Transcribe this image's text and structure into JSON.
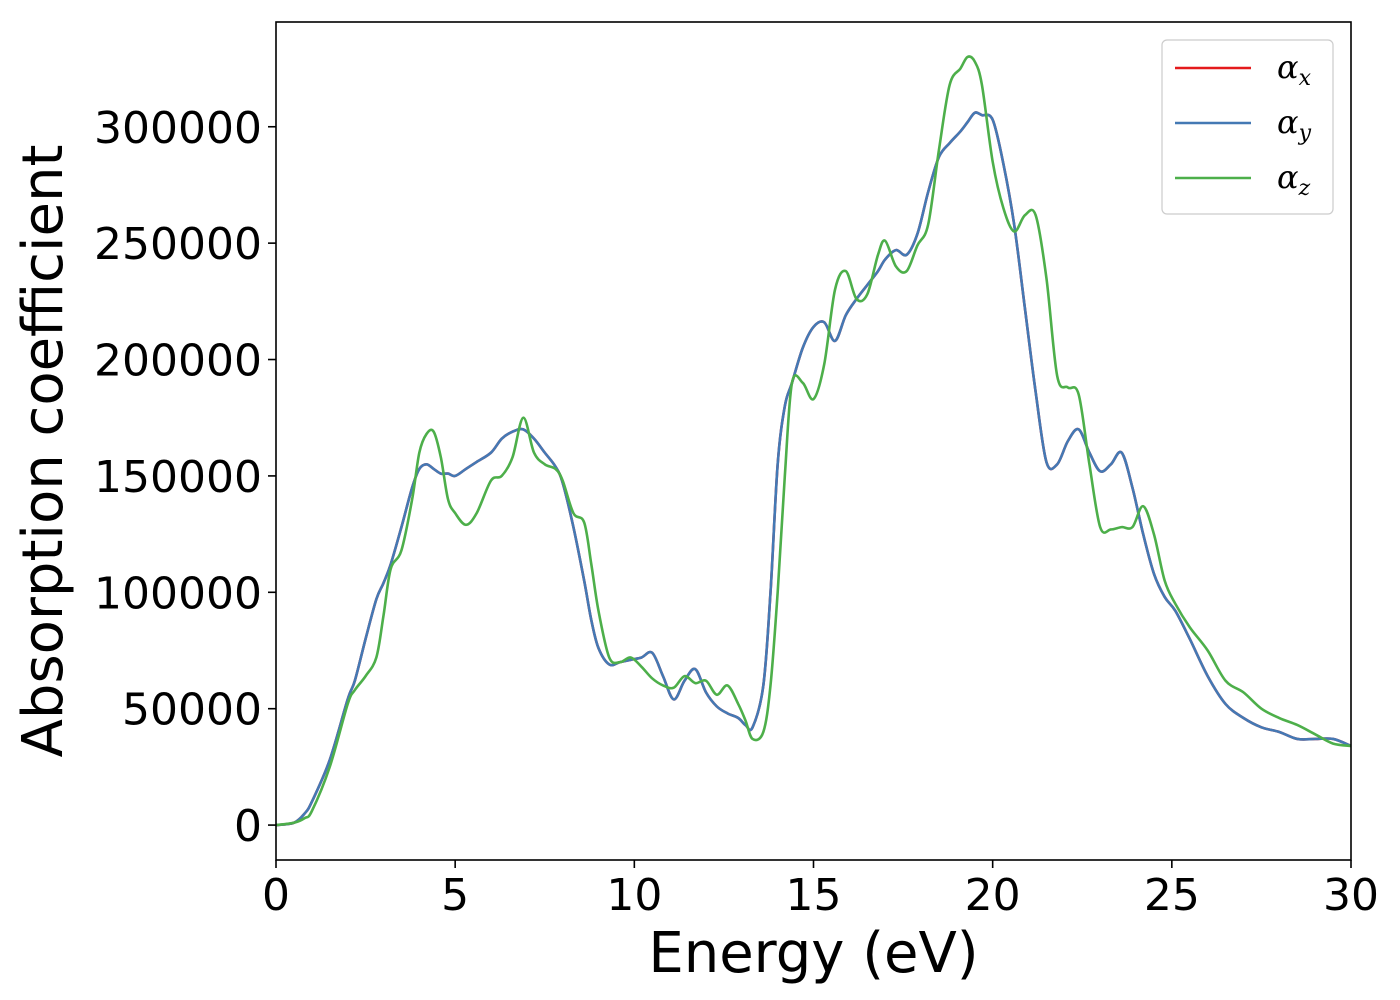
{
  "chart_data": {
    "type": "line",
    "title": "",
    "xlabel": "Energy (eV)",
    "ylabel": "Absorption coefficient",
    "xlim": [
      0,
      30
    ],
    "ylim": [
      -15000,
      345000
    ],
    "xticks": [
      0,
      5,
      10,
      15,
      20,
      25,
      30
    ],
    "yticks": [
      0,
      50000,
      100000,
      150000,
      200000,
      250000,
      300000
    ],
    "grid": false,
    "legend_position": "top-right",
    "x": [
      0,
      0.5,
      0.8,
      1.0,
      1.5,
      2.0,
      2.2,
      2.5,
      2.8,
      3.0,
      3.2,
      3.5,
      3.8,
      4.0,
      4.2,
      4.4,
      4.6,
      4.8,
      5.0,
      5.3,
      5.6,
      6.0,
      6.3,
      6.6,
      6.9,
      7.2,
      7.5,
      7.8,
      8.0,
      8.3,
      8.6,
      8.8,
      9.0,
      9.3,
      9.6,
      9.9,
      10.2,
      10.5,
      10.8,
      11.1,
      11.4,
      11.7,
      12.0,
      12.3,
      12.6,
      12.9,
      13.1,
      13.3,
      13.6,
      13.8,
      14.0,
      14.2,
      14.4,
      14.7,
      15.0,
      15.3,
      15.6,
      15.9,
      16.2,
      16.5,
      16.8,
      17.0,
      17.3,
      17.6,
      17.9,
      18.2,
      18.5,
      18.8,
      19.1,
      19.3,
      19.5,
      19.7,
      20.0,
      20.3,
      20.6,
      20.9,
      21.2,
      21.5,
      21.8,
      22.1,
      22.4,
      22.7,
      23.0,
      23.3,
      23.6,
      23.9,
      24.2,
      24.5,
      24.8,
      25.1,
      25.5,
      26.0,
      26.5,
      27.0,
      27.5,
      28.0,
      28.5,
      29.0,
      29.5,
      30.0
    ],
    "series": [
      {
        "name": "αx",
        "label_base": "α",
        "label_sub": "x",
        "color": "#e41a1c",
        "values": [
          0,
          1000,
          5000,
          10000,
          28000,
          54000,
          62000,
          80000,
          97000,
          104000,
          112000,
          128000,
          145000,
          153000,
          155000,
          153000,
          151000,
          151000,
          150000,
          153000,
          156000,
          160000,
          166000,
          169000,
          170000,
          166000,
          160000,
          154000,
          147000,
          128000,
          105000,
          88000,
          76000,
          69000,
          70000,
          71000,
          72000,
          74000,
          64000,
          54000,
          62000,
          67000,
          57000,
          51000,
          48000,
          46000,
          43000,
          42000,
          60000,
          100000,
          155000,
          180000,
          190000,
          205000,
          214000,
          216000,
          208000,
          219000,
          226000,
          232000,
          238000,
          243000,
          247000,
          245000,
          254000,
          272000,
          287000,
          293000,
          298000,
          302000,
          306000,
          305000,
          303000,
          284000,
          258000,
          222000,
          186000,
          156000,
          155000,
          165000,
          170000,
          160000,
          152000,
          155000,
          160000,
          145000,
          125000,
          108000,
          98000,
          92000,
          80000,
          64000,
          52000,
          46000,
          42000,
          40000,
          37000,
          37000,
          37000,
          34000
        ]
      },
      {
        "name": "αy",
        "label_base": "α",
        "label_sub": "y",
        "color": "#4479b4",
        "values": [
          0,
          1000,
          5000,
          10000,
          28000,
          54000,
          62000,
          80000,
          97000,
          104000,
          112000,
          128000,
          145000,
          153000,
          155000,
          153000,
          151000,
          151000,
          150000,
          153000,
          156000,
          160000,
          166000,
          169000,
          170000,
          166000,
          160000,
          154000,
          147000,
          128000,
          105000,
          88000,
          76000,
          69000,
          70000,
          71000,
          72000,
          74000,
          64000,
          54000,
          62000,
          67000,
          57000,
          51000,
          48000,
          46000,
          43000,
          42000,
          60000,
          100000,
          155000,
          180000,
          190000,
          205000,
          214000,
          216000,
          208000,
          219000,
          226000,
          232000,
          238000,
          243000,
          247000,
          245000,
          254000,
          272000,
          287000,
          293000,
          298000,
          302000,
          306000,
          305000,
          303000,
          284000,
          258000,
          222000,
          186000,
          156000,
          155000,
          165000,
          170000,
          160000,
          152000,
          155000,
          160000,
          145000,
          125000,
          108000,
          98000,
          92000,
          80000,
          64000,
          52000,
          46000,
          42000,
          40000,
          37000,
          37000,
          37000,
          34000
        ]
      },
      {
        "name": "αz",
        "label_base": "α",
        "label_sub": "z",
        "color": "#4daf4a",
        "values": [
          0,
          1000,
          3000,
          6000,
          25000,
          52000,
          58000,
          64000,
          72000,
          90000,
          110000,
          118000,
          140000,
          160000,
          168000,
          169000,
          158000,
          140000,
          134000,
          129000,
          134000,
          148000,
          150000,
          158000,
          175000,
          160000,
          155000,
          153000,
          148000,
          134000,
          130000,
          112000,
          92000,
          72000,
          70000,
          72000,
          68000,
          63000,
          60000,
          59000,
          64000,
          61000,
          62000,
          56000,
          60000,
          52000,
          45000,
          37000,
          40000,
          60000,
          100000,
          150000,
          190000,
          190000,
          183000,
          198000,
          230000,
          238000,
          226000,
          228000,
          245000,
          251000,
          240000,
          238000,
          249000,
          258000,
          290000,
          318000,
          325000,
          330000,
          328000,
          318000,
          285000,
          265000,
          255000,
          262000,
          262000,
          235000,
          193000,
          188000,
          185000,
          155000,
          128000,
          127000,
          128000,
          128000,
          137000,
          125000,
          105000,
          95000,
          85000,
          75000,
          62000,
          57000,
          50000,
          46000,
          43000,
          39000,
          35000,
          34000
        ]
      }
    ]
  }
}
